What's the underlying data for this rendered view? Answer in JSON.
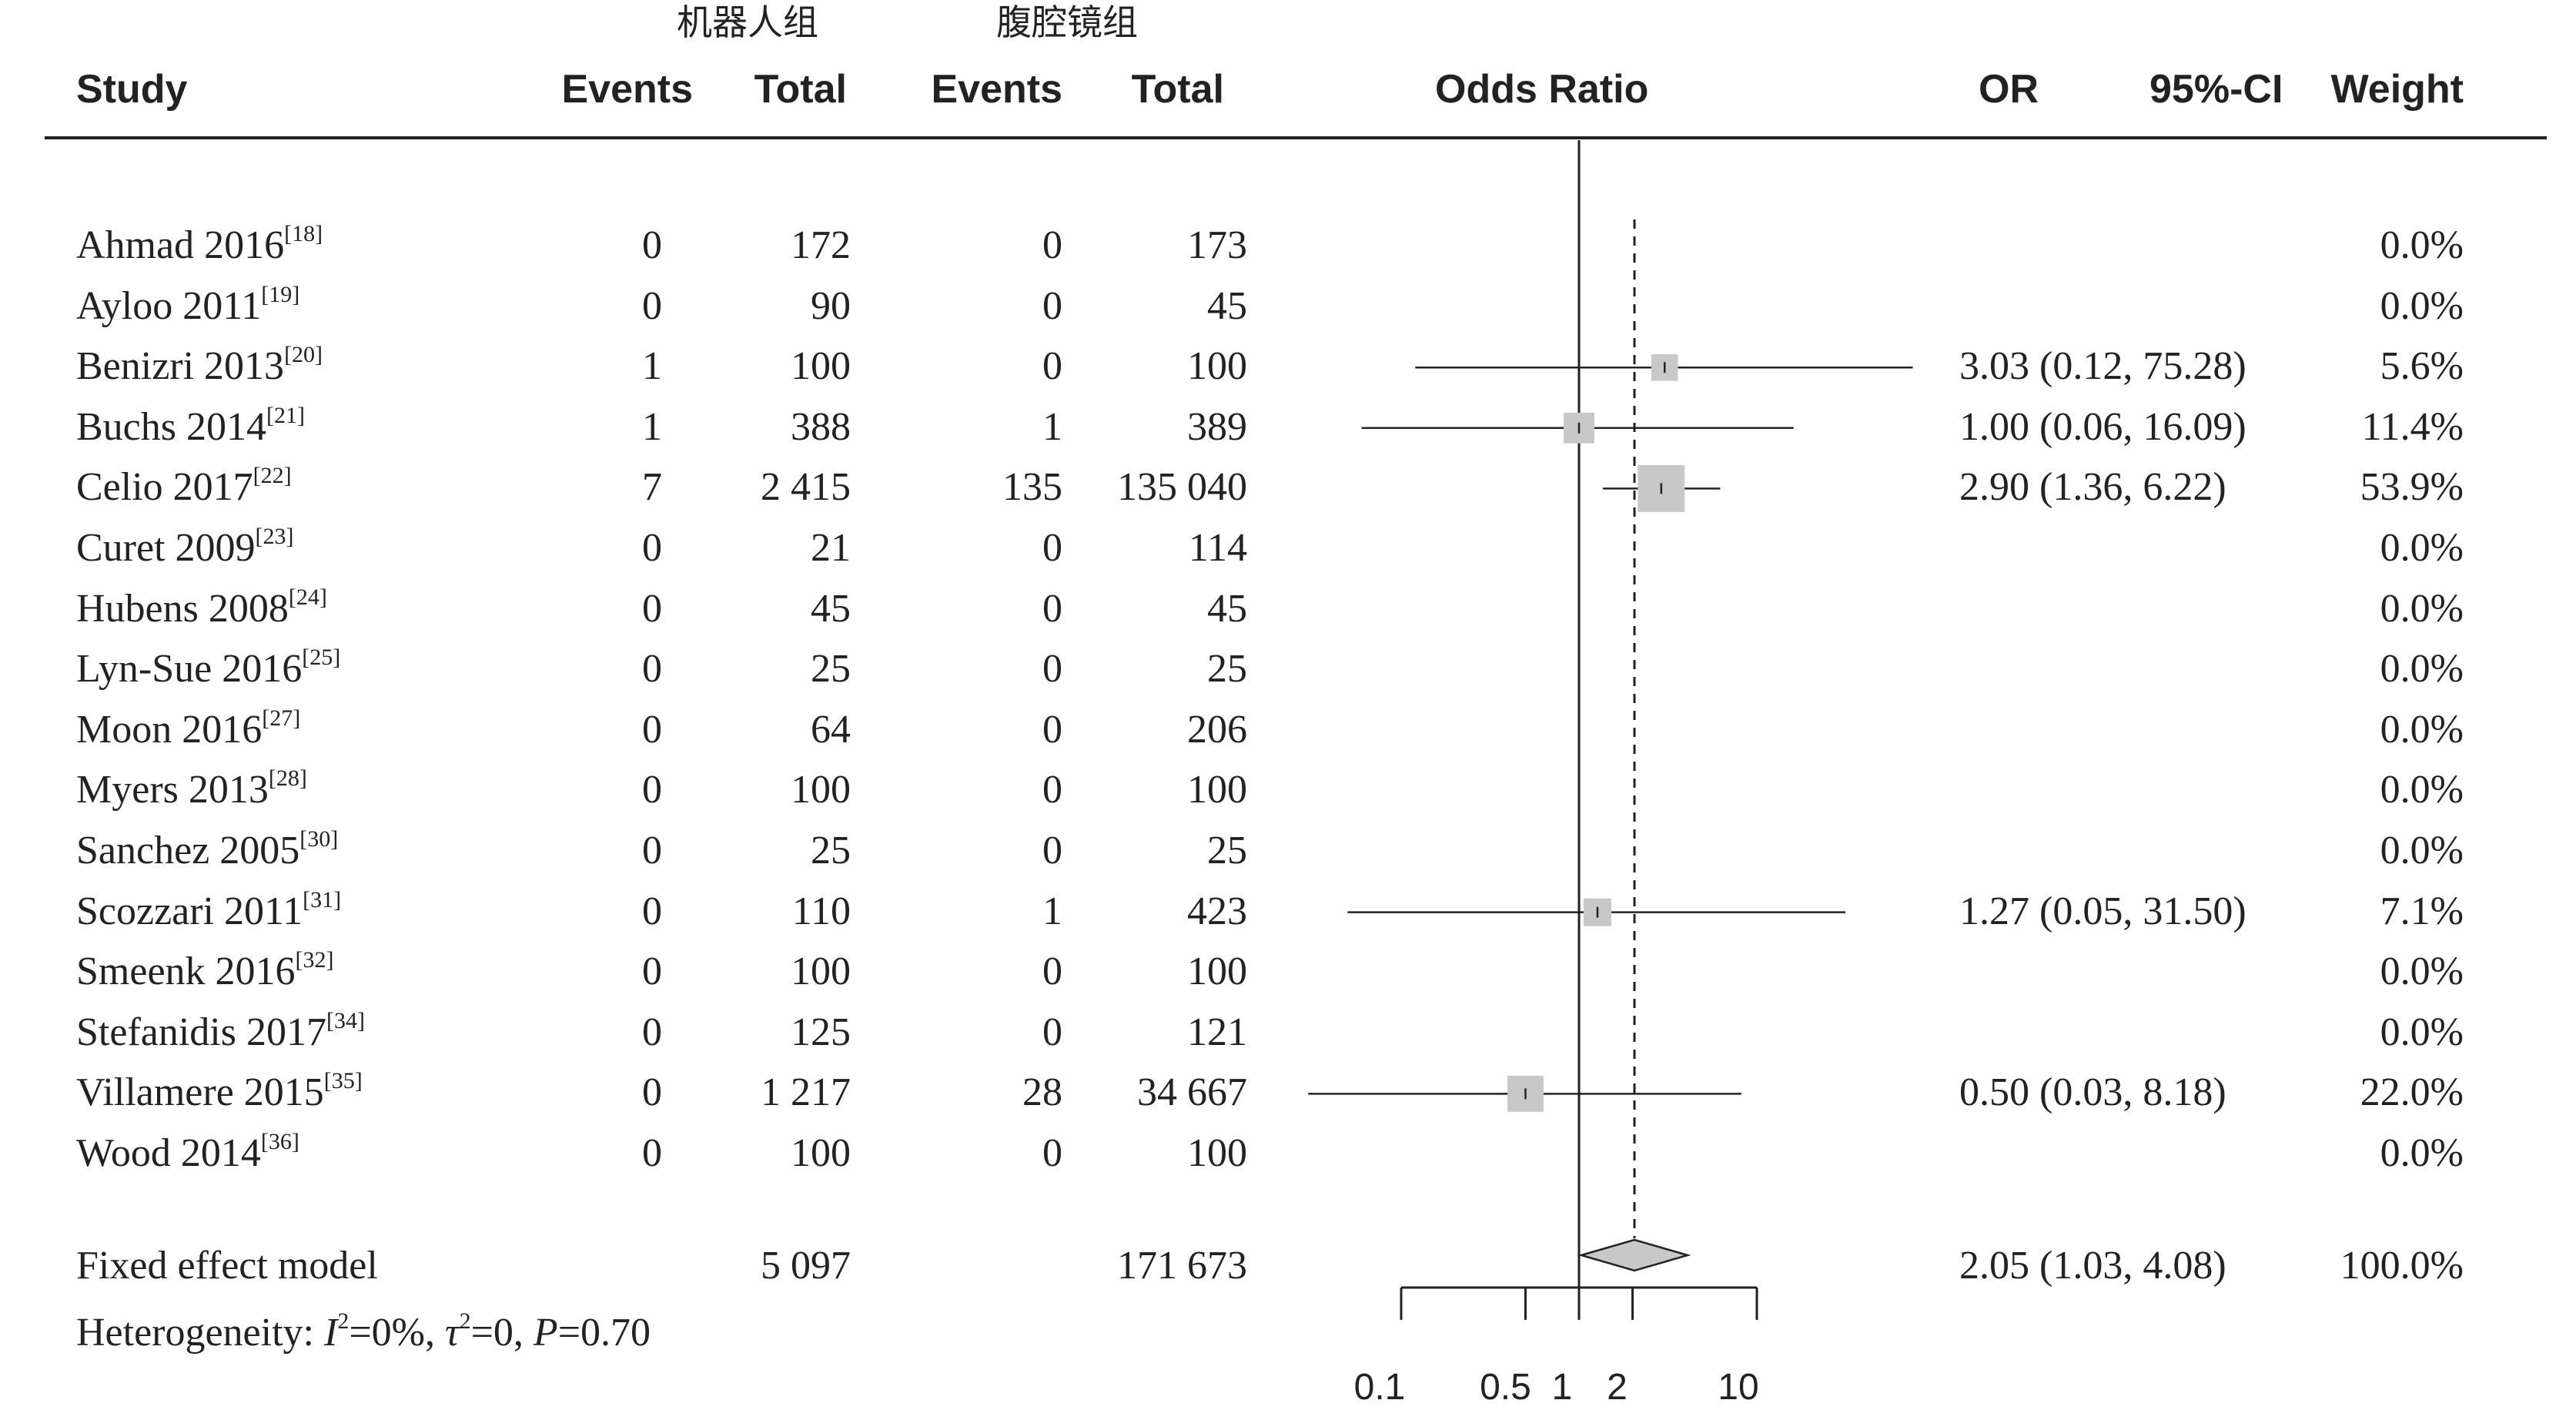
{
  "header": {
    "group_robot": "机器人组",
    "group_lap": "腹腔镜组",
    "study": "Study",
    "events_1": "Events",
    "total_1": "Total",
    "events_2": "Events",
    "total_2": "Total",
    "odds_ratio": "Odds Ratio",
    "or": "OR",
    "ci": "95%-CI",
    "weight": "Weight"
  },
  "chart_data": {
    "type": "forest",
    "xscale": "log",
    "xlim": [
      0.1,
      10
    ],
    "xticks": [
      0.1,
      0.5,
      1,
      2,
      10
    ],
    "xtick_labels": [
      "0.1",
      "0.5",
      "1",
      "2",
      "10"
    ],
    "reference_line": 1,
    "summary_line": 2.05,
    "rows": [
      {
        "study": "Ahmad 2016",
        "ref": "[18]",
        "e1": "0",
        "t1": "172",
        "e2": "0",
        "t2": "173",
        "or": null,
        "lo": null,
        "hi": null,
        "weight_value": 0,
        "or_text": "",
        "weight": "0.0%"
      },
      {
        "study": "Ayloo 2011",
        "ref": "[19]",
        "e1": "0",
        "t1": "90",
        "e2": "0",
        "t2": "45",
        "or": null,
        "lo": null,
        "hi": null,
        "weight_value": 0,
        "or_text": "",
        "weight": "0.0%"
      },
      {
        "study": "Benizri 2013",
        "ref": "[20]",
        "e1": "1",
        "t1": "100",
        "e2": "0",
        "t2": "100",
        "or": 3.03,
        "lo": 0.12,
        "hi": 75.28,
        "weight_value": 5.6,
        "or_text": "3.03 (0.12, 75.28)",
        "weight": "5.6%"
      },
      {
        "study": "Buchs 2014",
        "ref": "[21]",
        "e1": "1",
        "t1": "388",
        "e2": "1",
        "t2": "389",
        "or": 1.0,
        "lo": 0.06,
        "hi": 16.09,
        "weight_value": 11.4,
        "or_text": "1.00 (0.06, 16.09)",
        "weight": "11.4%"
      },
      {
        "study": "Celio 2017",
        "ref": "[22]",
        "e1": "7",
        "t1": "2 415",
        "e2": "135",
        "t2": "135 040",
        "or": 2.9,
        "lo": 1.36,
        "hi": 6.22,
        "weight_value": 53.9,
        "or_text": "2.90 (1.36, 6.22)",
        "weight": "53.9%"
      },
      {
        "study": "Curet 2009",
        "ref": "[23]",
        "e1": "0",
        "t1": "21",
        "e2": "0",
        "t2": "114",
        "or": null,
        "lo": null,
        "hi": null,
        "weight_value": 0,
        "or_text": "",
        "weight": "0.0%"
      },
      {
        "study": "Hubens 2008",
        "ref": "[24]",
        "e1": "0",
        "t1": "45",
        "e2": "0",
        "t2": "45",
        "or": null,
        "lo": null,
        "hi": null,
        "weight_value": 0,
        "or_text": "",
        "weight": "0.0%"
      },
      {
        "study": "Lyn-Sue 2016",
        "ref": "[25]",
        "e1": "0",
        "t1": "25",
        "e2": "0",
        "t2": "25",
        "or": null,
        "lo": null,
        "hi": null,
        "weight_value": 0,
        "or_text": "",
        "weight": "0.0%"
      },
      {
        "study": "Moon 2016",
        "ref": "[27]",
        "e1": "0",
        "t1": "64",
        "e2": "0",
        "t2": "206",
        "or": null,
        "lo": null,
        "hi": null,
        "weight_value": 0,
        "or_text": "",
        "weight": "0.0%"
      },
      {
        "study": "Myers 2013",
        "ref": "[28]",
        "e1": "0",
        "t1": "100",
        "e2": "0",
        "t2": "100",
        "or": null,
        "lo": null,
        "hi": null,
        "weight_value": 0,
        "or_text": "",
        "weight": "0.0%"
      },
      {
        "study": "Sanchez 2005",
        "ref": "[30]",
        "e1": "0",
        "t1": "25",
        "e2": "0",
        "t2": "25",
        "or": null,
        "lo": null,
        "hi": null,
        "weight_value": 0,
        "or_text": "",
        "weight": "0.0%"
      },
      {
        "study": "Scozzari 2011",
        "ref": "[31]",
        "e1": "0",
        "t1": "110",
        "e2": "1",
        "t2": "423",
        "or": 1.27,
        "lo": 0.05,
        "hi": 31.5,
        "weight_value": 7.1,
        "or_text": "1.27 (0.05, 31.50)",
        "weight": "7.1%"
      },
      {
        "study": "Smeenk 2016",
        "ref": "[32]",
        "e1": "0",
        "t1": "100",
        "e2": "0",
        "t2": "100",
        "or": null,
        "lo": null,
        "hi": null,
        "weight_value": 0,
        "or_text": "",
        "weight": "0.0%"
      },
      {
        "study": "Stefanidis 2017",
        "ref": "[34]",
        "e1": "0",
        "t1": "125",
        "e2": "0",
        "t2": "121",
        "or": null,
        "lo": null,
        "hi": null,
        "weight_value": 0,
        "or_text": "",
        "weight": "0.0%"
      },
      {
        "study": "Villamere 2015",
        "ref": "[35]",
        "e1": "0",
        "t1": "1 217",
        "e2": "28",
        "t2": "34 667",
        "or": 0.5,
        "lo": 0.03,
        "hi": 8.18,
        "weight_value": 22.0,
        "or_text": "0.50 (0.03, 8.18)",
        "weight": "22.0%"
      },
      {
        "study": "Wood  2014",
        "ref": "[36]",
        "e1": "0",
        "t1": "100",
        "e2": "0",
        "t2": "100",
        "or": null,
        "lo": null,
        "hi": null,
        "weight_value": 0,
        "or_text": "",
        "weight": "0.0%"
      }
    ],
    "summary": {
      "label": "Fixed effect model",
      "t1": "5 097",
      "t2": "171 673",
      "or": 2.05,
      "lo": 1.03,
      "hi": 4.08,
      "or_text": "2.05 (1.03, 4.08)",
      "weight": "100.0%"
    },
    "heterogeneity": {
      "prefix": "Heterogeneity: ",
      "i_sym": "I",
      "i_sup": "2",
      "i_val": "=0%, ",
      "tau_sym": "τ",
      "tau_sup": "2",
      "tau_val": "=0, ",
      "p_sym": "P",
      "p_val": "=0.70"
    },
    "colors": {
      "box": "#c8c8c8",
      "diamond": "#c8c8c8",
      "line": "#222222"
    }
  }
}
